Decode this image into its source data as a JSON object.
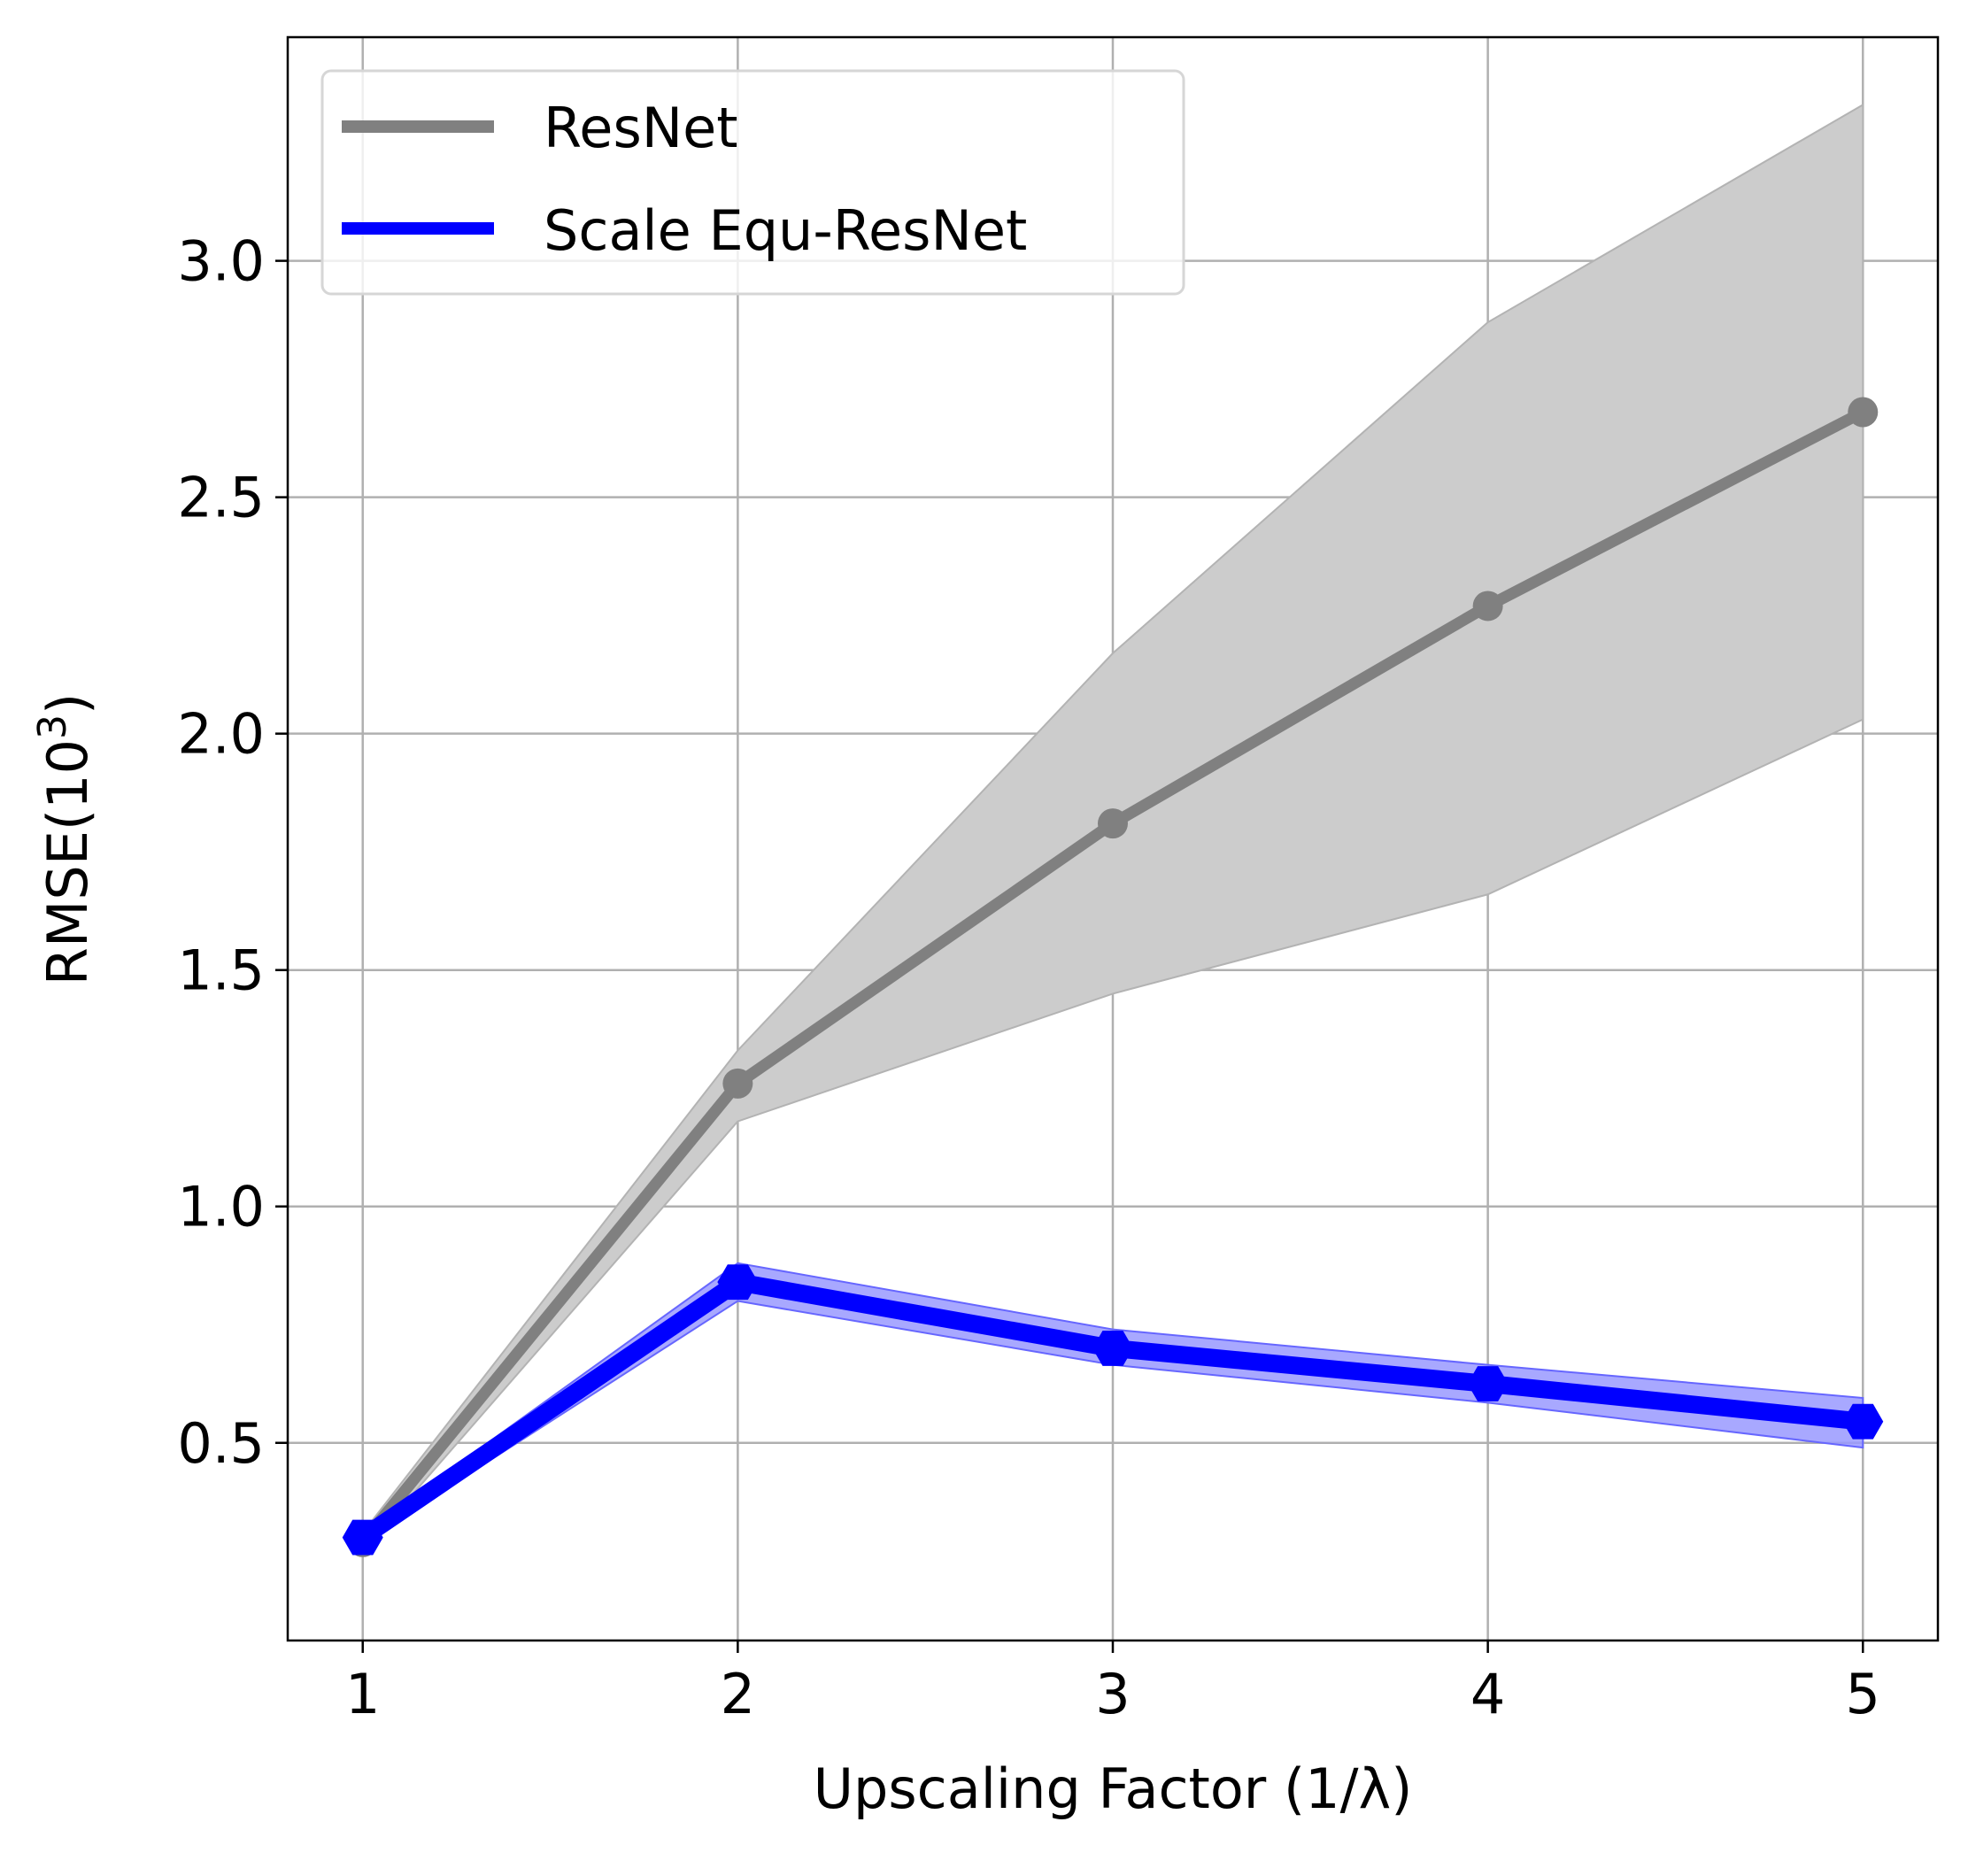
{
  "chart_data": {
    "type": "line",
    "title": "",
    "xlabel": "Upscaling Factor (1/λ)",
    "ylabel_main": "RMSE(10",
    "ylabel_sup": "3",
    "ylabel_close": ")",
    "xlim": [
      0.8,
      5.2
    ],
    "ylim": [
      0.082,
      3.473
    ],
    "xticks": [
      1,
      2,
      3,
      4,
      5
    ],
    "xtick_labels": [
      "1",
      "2",
      "3",
      "4",
      "5"
    ],
    "yticks": [
      0.5,
      1.0,
      1.5,
      2.0,
      2.5,
      3.0
    ],
    "ytick_labels": [
      "0.5",
      "1.0",
      "1.5",
      "2.0",
      "2.5",
      "3.0"
    ],
    "grid": true,
    "legend_position": "top-left",
    "x": [
      1,
      2,
      3,
      4,
      5
    ],
    "series": [
      {
        "name": "ResNet",
        "color": "#808080",
        "band_color": "#cccccc",
        "marker": "circle",
        "values": [
          0.29,
          1.26,
          1.81,
          2.27,
          2.68
        ],
        "lower": [
          0.27,
          1.18,
          1.45,
          1.66,
          2.03
        ],
        "upper": [
          0.31,
          1.33,
          2.17,
          2.87,
          3.33
        ]
      },
      {
        "name": "Scale Equ-ResNet",
        "color": "#0000ff",
        "band_color": "#9999ff",
        "marker": "hexagon",
        "values": [
          0.3,
          0.84,
          0.7,
          0.625,
          0.545
        ],
        "lower": [
          0.29,
          0.8,
          0.665,
          0.585,
          0.49
        ],
        "upper": [
          0.31,
          0.88,
          0.74,
          0.665,
          0.595
        ]
      }
    ]
  }
}
